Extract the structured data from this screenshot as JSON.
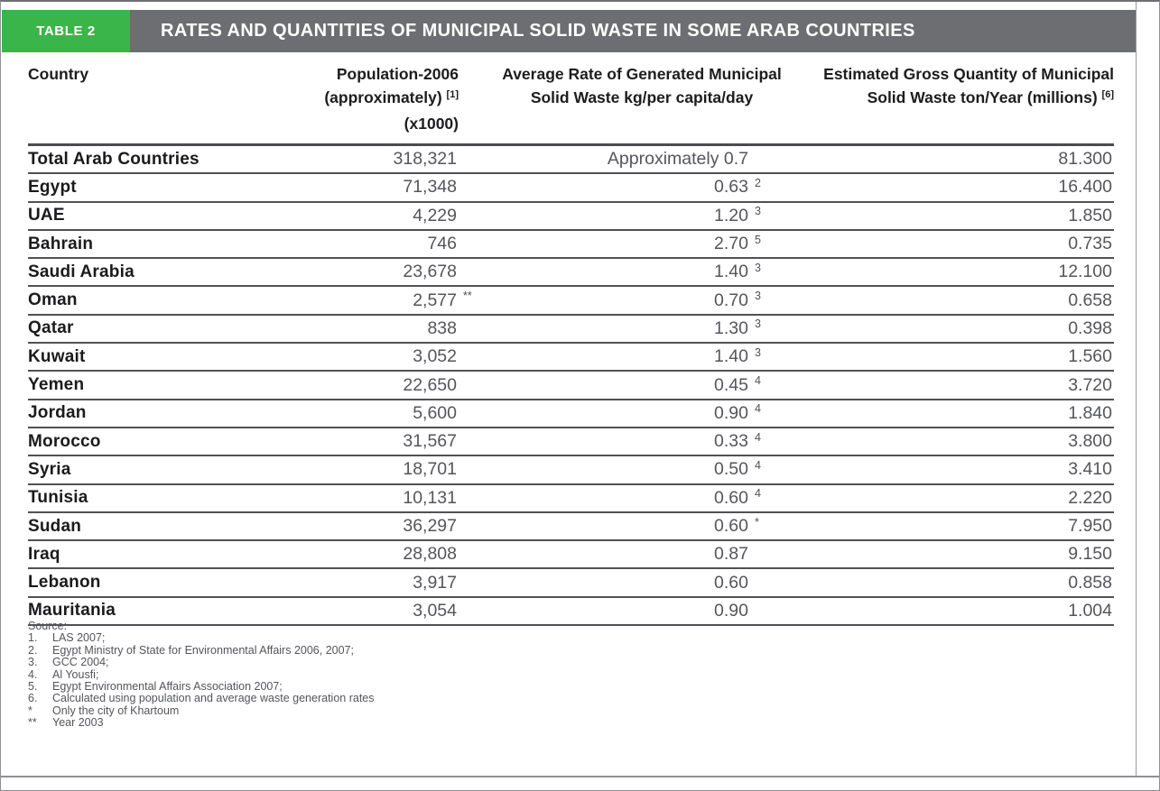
{
  "table_badge": "TABLE 2",
  "table_title": "RATES AND QUANTITIES OF MUNICIPAL SOLID WASTE IN SOME ARAB COUNTRIES",
  "columns": {
    "country": "Country",
    "population": {
      "line1": "Population-2006",
      "line2_pre": "(approximately)",
      "line2_sup": "[1]",
      "line2_post": "(x1000)"
    },
    "rate": {
      "line1": "Average Rate of Generated Municipal",
      "line2": "Solid Waste kg/per capita/day"
    },
    "quantity": {
      "line1": "Estimated Gross Quantity of Municipal",
      "line2_pre": "Solid Waste ton/Year (millions)",
      "line2_sup": "[6]"
    }
  },
  "rows": [
    {
      "country": "Total Arab Countries",
      "population": "318,321",
      "population_note": "",
      "rate": "Approximately 0.7",
      "rate_note": "",
      "quantity": "81.300"
    },
    {
      "country": "Egypt",
      "population": "71,348",
      "population_note": "",
      "rate": "0.63",
      "rate_note": "2",
      "quantity": "16.400"
    },
    {
      "country": "UAE",
      "population": "4,229",
      "population_note": "",
      "rate": "1.20",
      "rate_note": "3",
      "quantity": "1.850"
    },
    {
      "country": "Bahrain",
      "population": "746",
      "population_note": "",
      "rate": "2.70",
      "rate_note": "5",
      "quantity": "0.735"
    },
    {
      "country": "Saudi Arabia",
      "population": "23,678",
      "population_note": "",
      "rate": "1.40",
      "rate_note": "3",
      "quantity": "12.100"
    },
    {
      "country": "Oman",
      "population": "2,577",
      "population_note": "**",
      "rate": "0.70",
      "rate_note": "3",
      "quantity": "0.658"
    },
    {
      "country": "Qatar",
      "population": "838",
      "population_note": "",
      "rate": "1.30",
      "rate_note": "3",
      "quantity": "0.398"
    },
    {
      "country": "Kuwait",
      "population": "3,052",
      "population_note": "",
      "rate": "1.40",
      "rate_note": "3",
      "quantity": "1.560"
    },
    {
      "country": "Yemen",
      "population": "22,650",
      "population_note": "",
      "rate": "0.45",
      "rate_note": "4",
      "quantity": "3.720"
    },
    {
      "country": "Jordan",
      "population": "5,600",
      "population_note": "",
      "rate": "0.90",
      "rate_note": "4",
      "quantity": "1.840"
    },
    {
      "country": "Morocco",
      "population": "31,567",
      "population_note": "",
      "rate": "0.33",
      "rate_note": "4",
      "quantity": "3.800"
    },
    {
      "country": "Syria",
      "population": "18,701",
      "population_note": "",
      "rate": "0.50",
      "rate_note": "4",
      "quantity": "3.410"
    },
    {
      "country": "Tunisia",
      "population": "10,131",
      "population_note": "",
      "rate": "0.60",
      "rate_note": "4",
      "quantity": "2.220"
    },
    {
      "country": "Sudan",
      "population": "36,297",
      "population_note": "",
      "rate": "0.60",
      "rate_note": "*",
      "quantity": "7.950"
    },
    {
      "country": "Iraq",
      "population": "28,808",
      "population_note": "",
      "rate": "0.87",
      "rate_note": "",
      "quantity": "9.150"
    },
    {
      "country": "Lebanon",
      "population": "3,917",
      "population_note": "",
      "rate": "0.60",
      "rate_note": "",
      "quantity": "0.858"
    },
    {
      "country": "Mauritania",
      "population": "3,054",
      "population_note": "",
      "rate": "0.90",
      "rate_note": "",
      "quantity": "1.004"
    }
  ],
  "footnotes": {
    "source_label": "Source:",
    "items": [
      {
        "marker": "1.",
        "text": "LAS 2007;"
      },
      {
        "marker": "2.",
        "text": "Egypt Ministry of State for Environmental Affairs 2006, 2007;"
      },
      {
        "marker": "3.",
        "text": "GCC 2004;"
      },
      {
        "marker": "4.",
        "text": "Al Yousfi;"
      },
      {
        "marker": "5.",
        "text": "Egypt Environmental Affairs Association 2007;"
      },
      {
        "marker": "6.",
        "text": "Calculated using population and average waste generation rates"
      },
      {
        "marker": "*",
        "text": "Only the city of Khartoum"
      },
      {
        "marker": "**",
        "text": "Year 2003"
      }
    ]
  },
  "colors": {
    "badge_green": "#3AB54A",
    "header_bar_gray": "#6D6E71",
    "row_line": "#505154",
    "country_text": "#1B1B1D",
    "value_text": "#55565A"
  }
}
